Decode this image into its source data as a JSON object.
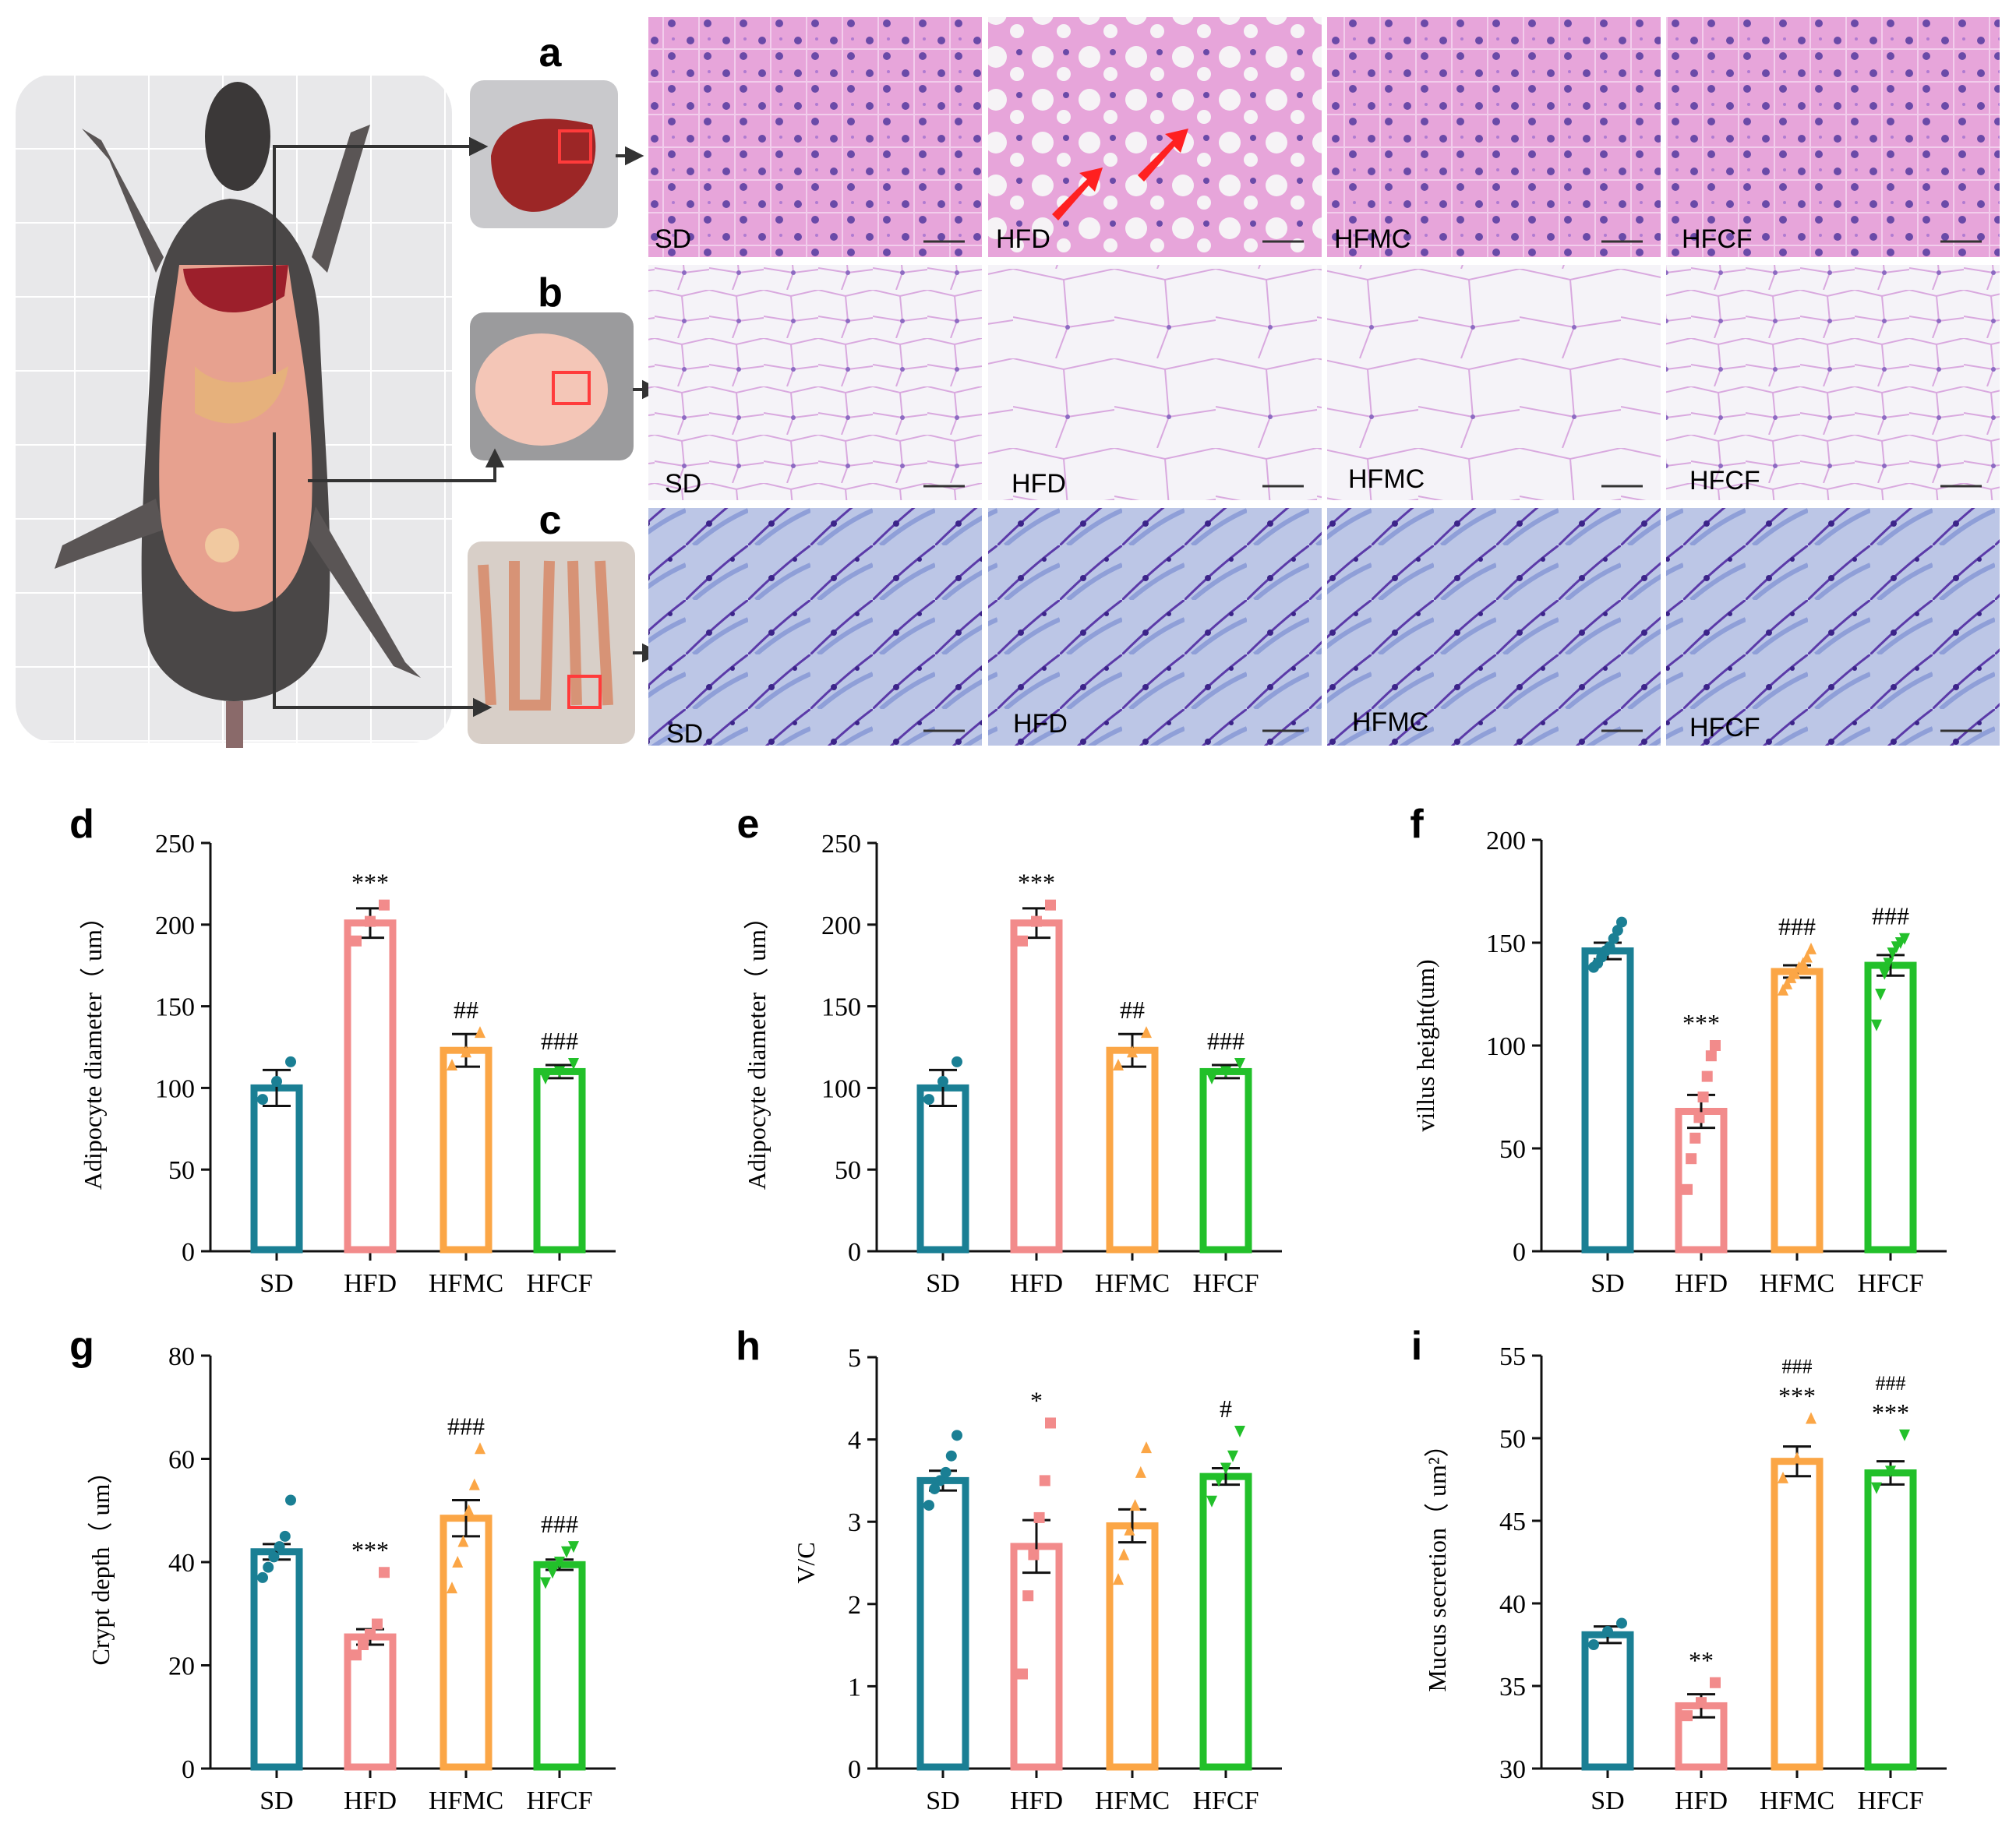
{
  "colors": {
    "SD": "#1a7f94",
    "HFD": "#f28b8b",
    "HFMC": "#fba646",
    "HFCF": "#22c02a",
    "arrow": "#333333",
    "highlight": "#ff3b3b",
    "he_stain": "#e7a5da",
    "adipose_stain": "#f1eef6",
    "pas_stain": "#9fb7e2"
  },
  "micro_panels": {
    "row_letters": [
      "a",
      "b",
      "c"
    ],
    "group_labels": [
      "SD",
      "HFD",
      "HFMC",
      "HFCF"
    ]
  },
  "chart_data": [
    {
      "id": "d",
      "type": "bar",
      "panel_letter": "d",
      "categories": [
        "SD",
        "HFD",
        "HFMC",
        "HFCF"
      ],
      "values": [
        100,
        201,
        123,
        110
      ],
      "errors": [
        11,
        9,
        10,
        4
      ],
      "points": [
        [
          93,
          104,
          116
        ],
        [
          190,
          202,
          212
        ],
        [
          114,
          122,
          134
        ],
        [
          106,
          110,
          115
        ]
      ],
      "markers": [
        "circle",
        "square",
        "triangle",
        "tri-down"
      ],
      "annotations": [
        "",
        "***",
        "##",
        "###"
      ],
      "ylabel": "Adipocyte diameter（ um）",
      "ylim": [
        0,
        250
      ],
      "yticks": [
        0,
        50,
        100,
        150,
        200,
        250
      ]
    },
    {
      "id": "e",
      "type": "bar",
      "panel_letter": "e",
      "categories": [
        "SD",
        "HFD",
        "HFMC",
        "HFCF"
      ],
      "values": [
        100,
        201,
        123,
        110
      ],
      "errors": [
        11,
        9,
        10,
        4
      ],
      "points": [
        [
          93,
          104,
          116
        ],
        [
          190,
          202,
          212
        ],
        [
          114,
          122,
          134
        ],
        [
          106,
          110,
          115
        ]
      ],
      "markers": [
        "circle",
        "square",
        "triangle",
        "tri-down"
      ],
      "annotations": [
        "",
        "***",
        "##",
        "###"
      ],
      "ylabel": "Adipocyte diameter（ um）",
      "ylim": [
        0,
        250
      ],
      "yticks": [
        0,
        50,
        100,
        150,
        200,
        250
      ]
    },
    {
      "id": "f",
      "type": "bar",
      "panel_letter": "f",
      "categories": [
        "SD",
        "HFD",
        "HFMC",
        "HFCF"
      ],
      "values": [
        146,
        68,
        136,
        139
      ],
      "errors": [
        4,
        8,
        3,
        5
      ],
      "points": [
        [
          138,
          140,
          143,
          146,
          148,
          152,
          156,
          160
        ],
        [
          30,
          45,
          55,
          65,
          75,
          85,
          95,
          100
        ],
        [
          127,
          130,
          133,
          135,
          138,
          140,
          143,
          147
        ],
        [
          110,
          125,
          135,
          140,
          145,
          148,
          150,
          152
        ]
      ],
      "markers": [
        "circle",
        "square",
        "triangle",
        "tri-down"
      ],
      "annotations": [
        "",
        "***",
        "###",
        "###"
      ],
      "ylabel": "villus height(um)",
      "ylim": [
        0,
        200
      ],
      "yticks": [
        0,
        50,
        100,
        150,
        200
      ]
    },
    {
      "id": "g",
      "type": "bar",
      "panel_letter": "g",
      "categories": [
        "SD",
        "HFD",
        "HFMC",
        "HFCF"
      ],
      "values": [
        42,
        25.5,
        48.5,
        39.5
      ],
      "errors": [
        1.5,
        1.5,
        3.5,
        1
      ],
      "points": [
        [
          37,
          39,
          41,
          43,
          45,
          52
        ],
        [
          22,
          24,
          26,
          28,
          38
        ],
        [
          35,
          40,
          44,
          50,
          55,
          62
        ],
        [
          36,
          38,
          40,
          42,
          43
        ]
      ],
      "markers": [
        "circle",
        "square",
        "triangle",
        "tri-down"
      ],
      "annotations": [
        "",
        "***",
        "###",
        "###"
      ],
      "ylabel": "Crypt depth（ um）",
      "ylim": [
        0,
        80
      ],
      "yticks": [
        0,
        20,
        40,
        60,
        80
      ]
    },
    {
      "id": "h",
      "type": "bar",
      "panel_letter": "h",
      "categories": [
        "SD",
        "HFD",
        "HFMC",
        "HFCF"
      ],
      "values": [
        3.5,
        2.7,
        2.95,
        3.55
      ],
      "errors": [
        0.12,
        0.32,
        0.2,
        0.1
      ],
      "points": [
        [
          3.2,
          3.4,
          3.5,
          3.6,
          3.8,
          4.05
        ],
        [
          1.15,
          2.1,
          2.6,
          3.05,
          3.5,
          4.2
        ],
        [
          2.3,
          2.6,
          2.9,
          3.2,
          3.6,
          3.9
        ],
        [
          3.25,
          3.5,
          3.65,
          3.8,
          4.1
        ]
      ],
      "markers": [
        "circle",
        "square",
        "triangle",
        "tri-down"
      ],
      "annotations": [
        "",
        "*",
        "",
        "#"
      ],
      "ylabel": "V/C",
      "ylim": [
        0,
        5
      ],
      "yticks": [
        0,
        1,
        2,
        3,
        4,
        5
      ]
    },
    {
      "id": "i",
      "type": "bar",
      "panel_letter": "i",
      "categories": [
        "SD",
        "HFD",
        "HFMC",
        "HFCF"
      ],
      "values": [
        38.1,
        33.8,
        48.6,
        47.9
      ],
      "errors": [
        0.5,
        0.7,
        0.9,
        0.7
      ],
      "points": [
        [
          37.5,
          38.3,
          38.8
        ],
        [
          33.2,
          34,
          35.2
        ],
        [
          47.6,
          48.8,
          51.2
        ],
        [
          47,
          48,
          50.2
        ]
      ],
      "markers": [
        "circle",
        "square",
        "triangle",
        "tri-down"
      ],
      "annotations": [
        "",
        "**",
        "***",
        "***"
      ],
      "annotations_top": [
        "",
        "",
        "###",
        "###"
      ],
      "ylabel": "Mucus secretion（ um²）",
      "ylim": [
        30,
        55
      ],
      "yticks": [
        30,
        35,
        40,
        45,
        50,
        55
      ]
    }
  ]
}
